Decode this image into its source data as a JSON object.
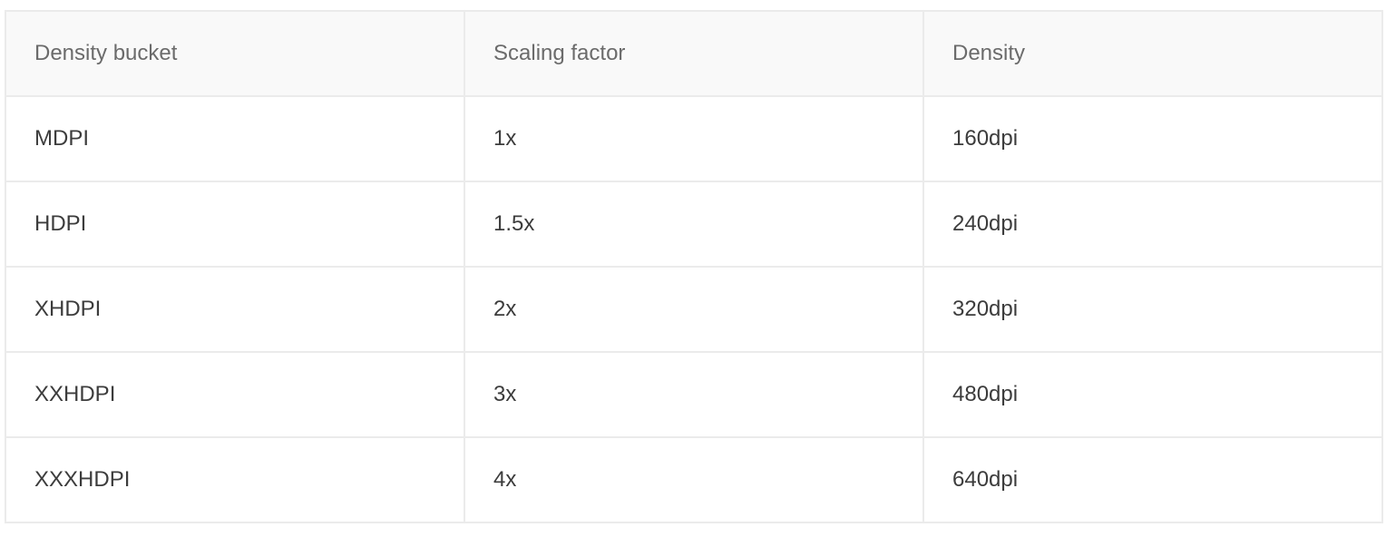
{
  "table": {
    "headers": [
      "Density bucket",
      "Scaling factor",
      "Density"
    ],
    "rows": [
      [
        "MDPI",
        "1x",
        "160dpi"
      ],
      [
        "HDPI",
        "1.5x",
        "240dpi"
      ],
      [
        "XHDPI",
        "2x",
        "320dpi"
      ],
      [
        "XXHDPI",
        "3x",
        "480dpi"
      ],
      [
        "XXXHDPI",
        "4x",
        "640dpi"
      ]
    ]
  },
  "colors": {
    "header_background": "#f9f9f9",
    "border": "#ebebeb",
    "header_text": "#6b6b6b",
    "cell_text": "#3c3c3c"
  }
}
